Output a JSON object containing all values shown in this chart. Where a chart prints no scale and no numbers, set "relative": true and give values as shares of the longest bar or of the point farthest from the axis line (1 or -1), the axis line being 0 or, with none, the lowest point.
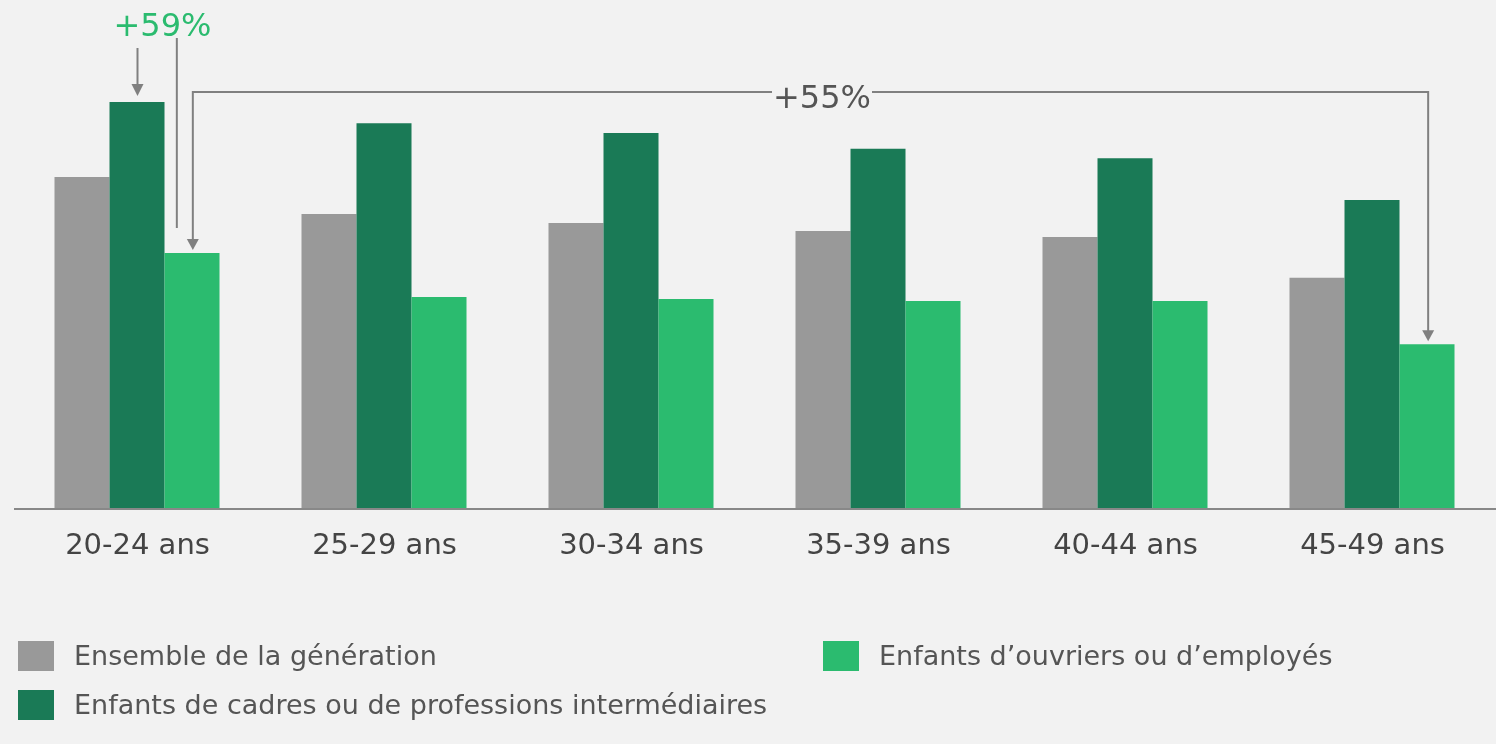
{
  "chart_data": {
    "type": "bar",
    "relative": true,
    "categories": [
      "20-24 ans",
      "25-29 ans",
      "30-34 ans",
      "35-39 ans",
      "40-44 ans",
      "45-49 ans"
    ],
    "series": [
      {
        "name": "Ensemble de la génération",
        "color": "#999999",
        "values": [
          0.816,
          0.725,
          0.703,
          0.683,
          0.668,
          0.568
        ]
      },
      {
        "name": "Enfants de cadres ou de professions intermédiaires",
        "color": "#1a7a56",
        "values": [
          1,
          0.948,
          0.924,
          0.885,
          0.862,
          0.759
        ]
      },
      {
        "name": "Enfants d’ouvriers ou d’employés",
        "color": "#2bbb6f",
        "values": [
          0.629,
          0.521,
          0.516,
          0.511,
          0.511,
          0.405
        ]
      }
    ],
    "annotations": [
      "+59%",
      "+55%"
    ],
    "legend": "bottom",
    "grid": false
  }
}
